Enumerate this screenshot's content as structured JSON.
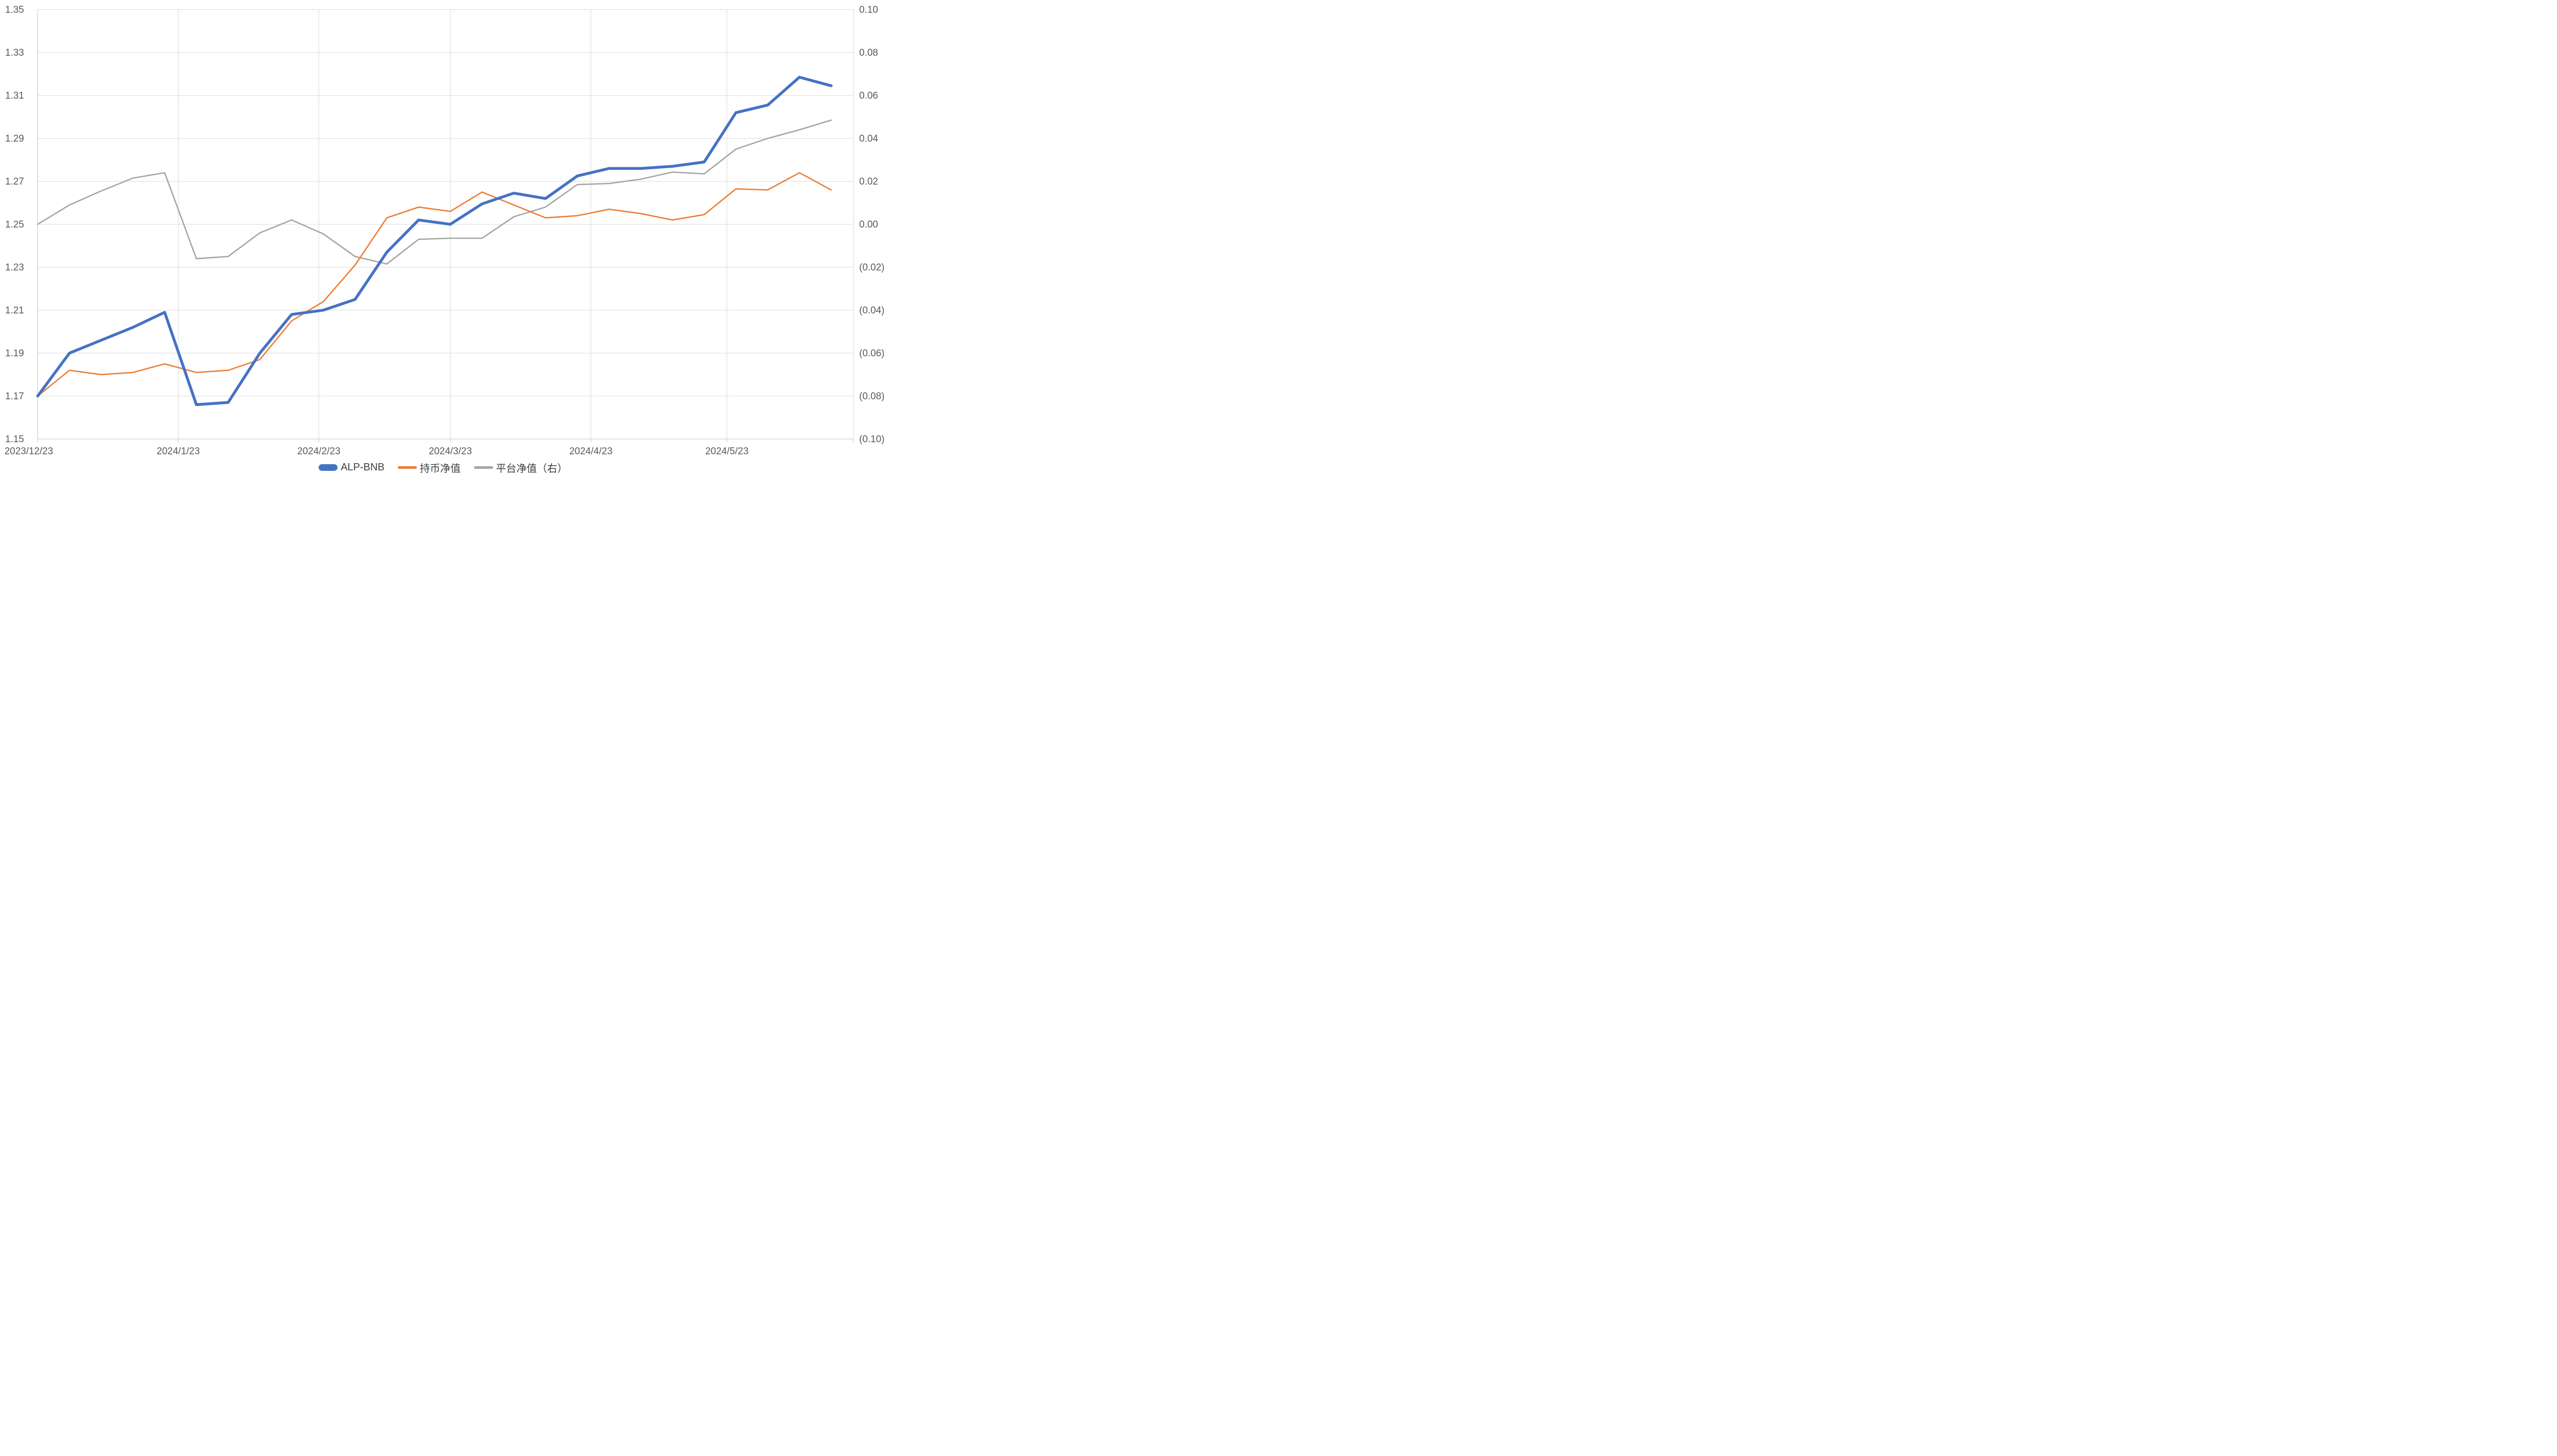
{
  "chart_data": {
    "type": "line",
    "title": "",
    "categories": [
      "2023/12/23",
      "2023/12/30",
      "2024/1/6",
      "2024/1/13",
      "2024/1/20",
      "2024/1/27",
      "2024/2/3",
      "2024/2/10",
      "2024/2/17",
      "2024/2/24",
      "2024/3/2",
      "2024/3/9",
      "2024/3/16",
      "2024/3/23",
      "2024/3/30",
      "2024/4/6",
      "2024/4/13",
      "2024/4/20",
      "2024/4/27",
      "2024/5/4",
      "2024/5/11",
      "2024/5/18",
      "2024/5/25",
      "2024/6/1",
      "2024/6/8",
      "2024/6/15"
    ],
    "point_interval_days": 7,
    "x_axis": {
      "tick_labels": [
        "2023/12/23",
        "2024/1/23",
        "2024/2/23",
        "2024/3/23",
        "2024/4/23",
        "2024/5/23"
      ],
      "tick_day_offsets": [
        0,
        31,
        62,
        91,
        122,
        152
      ],
      "total_days_span": 175
    },
    "left_axis": {
      "min": 1.15,
      "max": 1.35,
      "step": 0.02,
      "tick_labels": [
        "1.35",
        "1.33",
        "1.31",
        "1.29",
        "1.27",
        "1.25",
        "1.23",
        "1.21",
        "1.19",
        "1.17",
        "1.15"
      ]
    },
    "right_axis": {
      "min": -0.1,
      "max": 0.1,
      "step": 0.02,
      "tick_labels": [
        "0.10",
        "0.08",
        "0.06",
        "0.04",
        "0.02",
        "0.00",
        "(0.02)",
        "(0.04)",
        "(0.06)",
        "(0.08)",
        "(0.10)"
      ],
      "negative_color": "#FF0000",
      "positive_color": "#595959"
    },
    "series": [
      {
        "name": "ALP-BNB",
        "axis": "left",
        "color": "#4472C4",
        "stroke_width": 5.5,
        "values": [
          1.17,
          1.19,
          1.196,
          1.202,
          1.209,
          1.166,
          1.167,
          1.19,
          1.208,
          1.21,
          1.215,
          1.237,
          1.252,
          1.25,
          1.2595,
          1.2645,
          1.262,
          1.2725,
          1.276,
          1.276,
          1.277,
          1.279,
          1.302,
          1.3055,
          1.3185,
          1.3145
        ]
      },
      {
        "name": "持币净值",
        "axis": "left",
        "color": "#ED7D31",
        "stroke_width": 2.6,
        "values": [
          1.17,
          1.182,
          1.18,
          1.181,
          1.185,
          1.181,
          1.182,
          1.187,
          1.205,
          1.214,
          1.231,
          1.253,
          1.258,
          1.256,
          1.265,
          1.259,
          1.253,
          1.254,
          1.257,
          1.255,
          1.252,
          1.2545,
          1.2665,
          1.266,
          1.274,
          1.266
        ]
      },
      {
        "name": "平台净值（右）",
        "axis": "right",
        "color": "#A5A5A5",
        "stroke_width": 2.6,
        "values": [
          0.0,
          0.009,
          0.0155,
          0.0215,
          0.024,
          -0.016,
          -0.015,
          -0.004,
          0.002,
          -0.0045,
          -0.015,
          -0.0185,
          -0.007,
          -0.0065,
          -0.0065,
          0.0035,
          0.008,
          0.0185,
          0.019,
          0.021,
          0.0243,
          0.0235,
          0.035,
          0.04,
          0.044,
          0.0485
        ]
      }
    ],
    "grid": {
      "color": "#D9D9D9",
      "axis_line_color": "#C6C6C6",
      "show_horizontal": true,
      "show_vertical": true
    },
    "legend": {
      "position": "bottom",
      "entries": [
        "ALP-BNB",
        "持币净值",
        "平台净值（右）"
      ]
    }
  }
}
